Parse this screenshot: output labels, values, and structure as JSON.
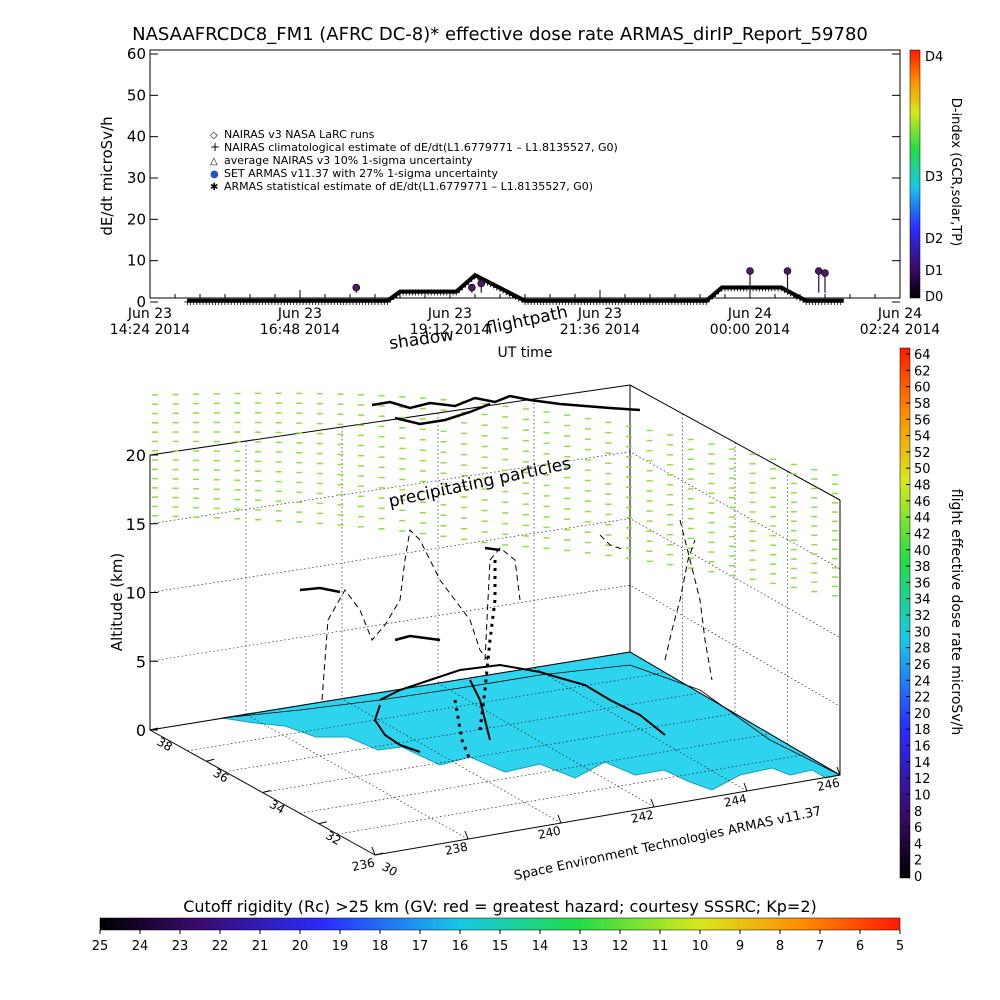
{
  "title": "NASAAFRCDC8_FM1 (AFRC DC-8)* effective dose rate ARMAS_dirIP_Report_59780",
  "top_chart": {
    "ylabel": "dE/dt microSv/h",
    "xlabel": "UT time",
    "y_ticks": [
      "0",
      "10",
      "20",
      "30",
      "40",
      "50",
      "60"
    ],
    "x_ticks": [
      {
        "line1": "Jun 23",
        "line2": "14:24 2014"
      },
      {
        "line1": "Jun 23",
        "line2": "16:48 2014"
      },
      {
        "line1": "Jun 23",
        "line2": "19:12 2014"
      },
      {
        "line1": "Jun 23",
        "line2": "21:36 2014"
      },
      {
        "line1": "Jun 24",
        "line2": "00:00 2014"
      },
      {
        "line1": "Jun 24",
        "line2": "02:24 2014"
      }
    ],
    "legend": [
      {
        "symbol": "◇",
        "label": "NAIRAS v3 NASA LaRC runs"
      },
      {
        "symbol": "+",
        "label": "NAIRAS climatological estimate of dE/dt(L1.6779771 – L1.8135527, G0)"
      },
      {
        "symbol": "△",
        "label": "average NAIRAS v3 10% 1-sigma uncertainty"
      },
      {
        "symbol": "●",
        "label": "SET ARMAS v11.37 with 27% 1-sigma uncertainty"
      },
      {
        "symbol": "✱",
        "label": "ARMAS statistical estimate of dE/dt(L1.6779771 – L1.8135527, G0)"
      }
    ],
    "dindex_label": "D-index (GCR,solar,TP)",
    "dindex_ticks": [
      "D0",
      "D1",
      "D2",
      "D3",
      "D4"
    ]
  },
  "chart_data": [
    {
      "type": "line",
      "title": "NASAAFRCDC8_FM1 (AFRC DC-8)* effective dose rate ARMAS_dirIP_Report_59780",
      "xlabel": "UT time",
      "ylabel": "dE/dt microSv/h",
      "ylim": [
        0,
        60
      ],
      "x_ticks": [
        "Jun 23 14:24 2014",
        "Jun 23 16:48 2014",
        "Jun 23 19:12 2014",
        "Jun 23 21:36 2014",
        "Jun 24 00:00 2014",
        "Jun 24 02:24 2014"
      ],
      "series": [
        {
          "name": "NAIRAS climatological estimate of dE/dt(L1.6779771 – L1.8135527, G0)",
          "x_hours_utc_jun23": [
            15.0,
            17.0,
            18.2,
            18.4,
            19.3,
            19.6,
            20.4,
            23.3,
            23.55,
            24.5,
            24.9,
            25.5
          ],
          "values": [
            0.3,
            0.3,
            0.3,
            2.5,
            2.5,
            6.5,
            0.3,
            0.3,
            3.5,
            3.5,
            0.3,
            0.3
          ]
        },
        {
          "name": "SET ARMAS v11.37 with 27% 1-sigma uncertainty",
          "x_hours_utc_jun23": [
            17.7,
            19.55,
            19.7,
            24.0,
            24.6,
            25.1,
            25.2
          ],
          "values": [
            3.5,
            3.5,
            4.5,
            7.5,
            7.5,
            7.5,
            7.0
          ]
        }
      ]
    },
    {
      "type": "scatter",
      "title": "flightpath",
      "xlabel": "",
      "ylabel": "Altitude (km)",
      "zlim": [
        0,
        20
      ],
      "z_ticks": [
        "0",
        "5",
        "10",
        "15",
        "20"
      ],
      "lon_ticks": [
        "236",
        "238",
        "240",
        "242",
        "244",
        "246"
      ],
      "lat_ticks": [
        "30",
        "32",
        "34",
        "36",
        "38"
      ],
      "annotations": [
        "shadow",
        "flightpath",
        "precipitating particles"
      ],
      "colorbar": {
        "label": "flight effective dose rate microSv/h",
        "ticks": [
          "0",
          "2",
          "4",
          "6",
          "8",
          "10",
          "12",
          "14",
          "16",
          "18",
          "20",
          "22",
          "24",
          "26",
          "28",
          "30",
          "32",
          "34",
          "36",
          "38",
          "40",
          "42",
          "44",
          "46",
          "48",
          "50",
          "52",
          "54",
          "56",
          "58",
          "60",
          "62",
          "64"
        ]
      }
    },
    {
      "type": "heatmap",
      "title": "Cutoff rigidity (Rc) >25 km (GV: red = greatest hazard; courtesy SSSRC; Kp=2)",
      "ticks": [
        "25",
        "24",
        "23",
        "22",
        "21",
        "20",
        "19",
        "18",
        "17",
        "16",
        "15",
        "14",
        "13",
        "12",
        "11",
        "10",
        "9",
        "8",
        "7",
        "6",
        "5"
      ]
    }
  ],
  "plot3d": {
    "ylabel": "Altitude (km)",
    "z_ticks": [
      "0",
      "5",
      "10",
      "15",
      "20"
    ],
    "lon_ticks": [
      "236",
      "238",
      "240",
      "242",
      "244",
      "246"
    ],
    "lat_ticks": [
      "30",
      "32",
      "34",
      "36",
      "38"
    ],
    "annot_shadow": "shadow",
    "annot_flightpath": "flightpath",
    "annot_particles": "precipitating particles",
    "credit": "Space Environment Technologies ARMAS v11.37"
  },
  "dose_colorbar": {
    "label": "flight effective dose rate microSv/h",
    "ticks": [
      "0",
      "2",
      "4",
      "6",
      "8",
      "10",
      "12",
      "14",
      "16",
      "18",
      "20",
      "22",
      "24",
      "26",
      "28",
      "30",
      "32",
      "34",
      "36",
      "38",
      "40",
      "42",
      "44",
      "46",
      "48",
      "50",
      "52",
      "54",
      "56",
      "58",
      "60",
      "62",
      "64"
    ]
  },
  "rigidity_colorbar": {
    "title": "Cutoff rigidity (Rc) >25 km (GV: red = greatest hazard; courtesy SSSRC; Kp=2)",
    "ticks": [
      "25",
      "24",
      "23",
      "22",
      "21",
      "20",
      "19",
      "18",
      "17",
      "16",
      "15",
      "14",
      "13",
      "12",
      "11",
      "10",
      "9",
      "8",
      "7",
      "6",
      "5"
    ]
  },
  "colors": {
    "land": "#2ed4ee",
    "particles": "#8ee03c",
    "track": "#000000",
    "track_marker": "#4a1a66"
  }
}
